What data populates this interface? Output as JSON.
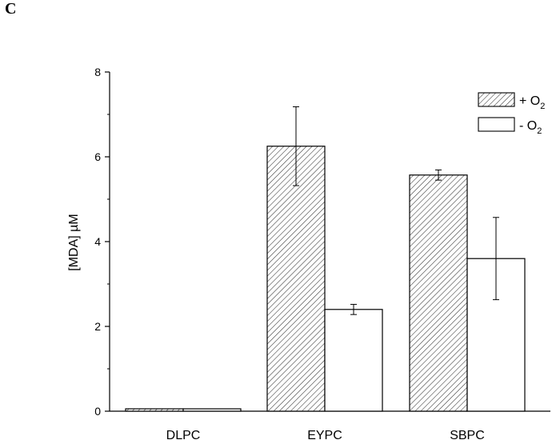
{
  "panel_label": "C",
  "chart_data": {
    "type": "bar",
    "categories": [
      "DLPC",
      "EYPC",
      "SBPC"
    ],
    "series": [
      {
        "name": "+ O2",
        "legend_main": "+ O",
        "legend_sub": "2",
        "pattern": "hatched",
        "values": [
          0.0,
          6.25,
          5.57
        ],
        "errors": [
          0.0,
          0.93,
          0.12
        ]
      },
      {
        "name": "- O2",
        "legend_main": "-  O",
        "legend_sub": "2",
        "pattern": "open",
        "values": [
          0.0,
          2.4,
          3.6
        ],
        "errors": [
          0.0,
          0.12,
          0.97
        ]
      }
    ],
    "ylabel": "[MDA] µM",
    "xlabel": "",
    "ylim": [
      0,
      8
    ],
    "yticks": [
      0,
      2,
      4,
      6,
      8
    ],
    "grid": false,
    "legend_position": "top-right",
    "colors": {
      "bar_stroke": "#000000",
      "hatch": "#333333",
      "open_fill": "#ffffff"
    }
  }
}
